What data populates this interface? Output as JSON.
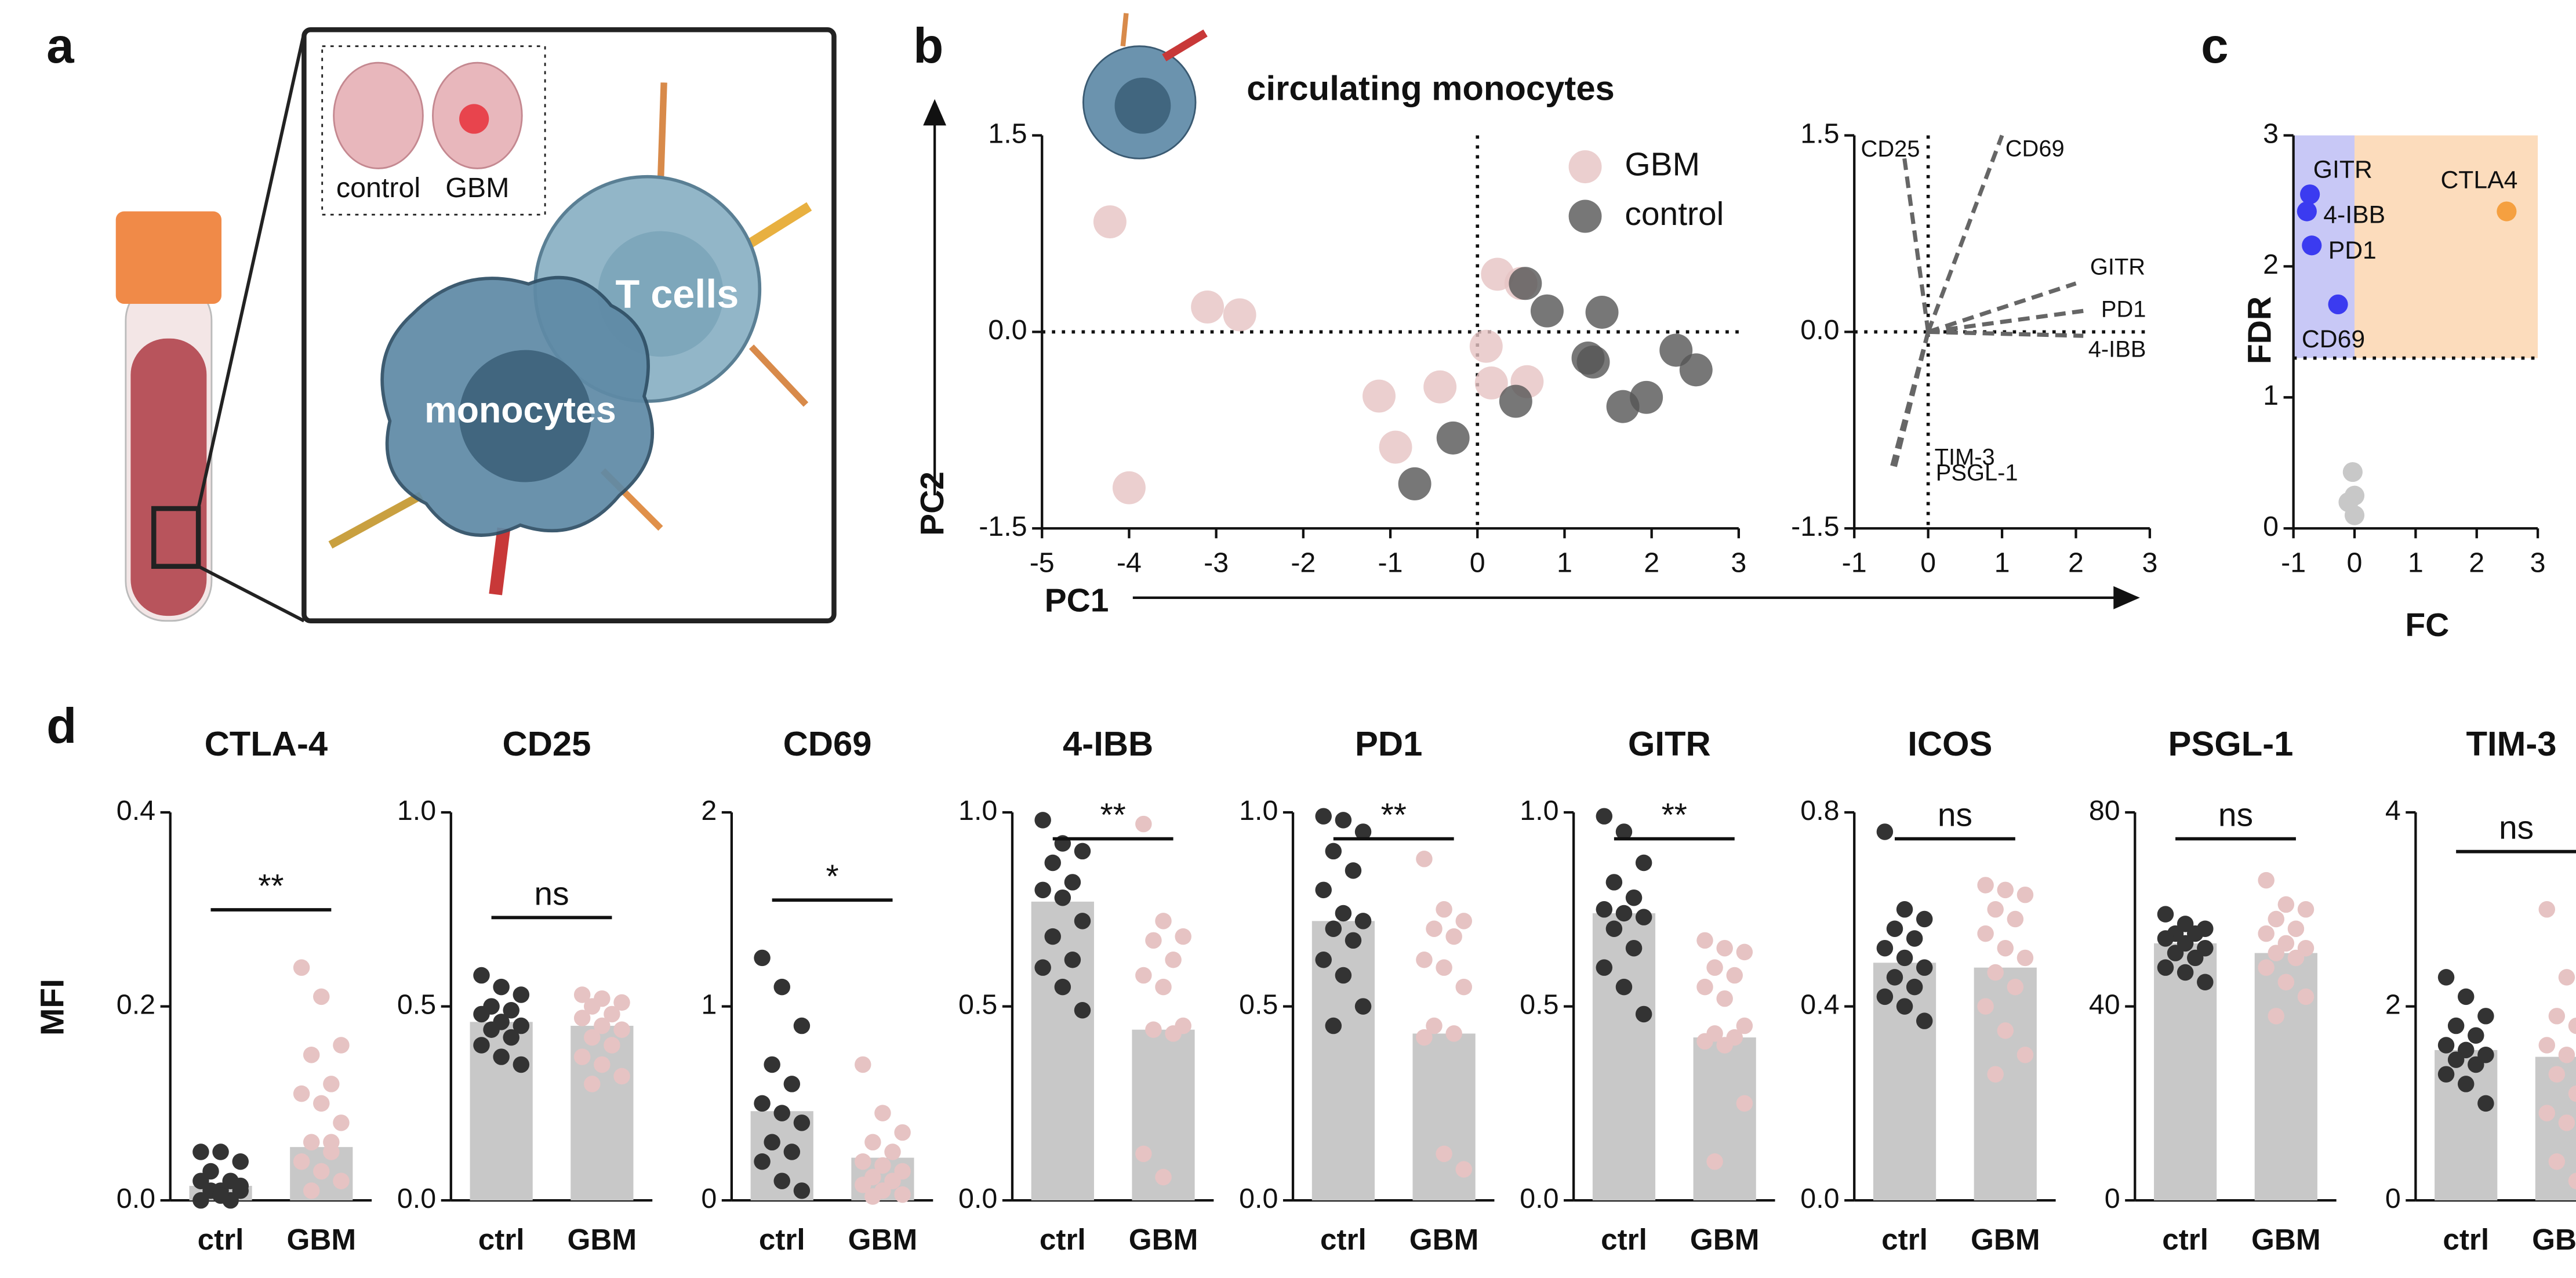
{
  "panels": [
    "a",
    "b",
    "c",
    "d"
  ],
  "illustration": {
    "brain_labels": [
      "control",
      "GBM"
    ],
    "cells": [
      "T cells",
      "monocytes"
    ]
  },
  "chart_data": [
    {
      "type": "scatter",
      "title": "circulating monocytes",
      "xlabel": "PC1",
      "ylabel": "PC2",
      "zero_lines": true,
      "xlim": [
        -5,
        3
      ],
      "xticks": [
        -5,
        -4,
        -3,
        -2,
        -1,
        0,
        1,
        2,
        3
      ],
      "ylim": [
        -1.5,
        1.5
      ],
      "yticks": [
        -1.5,
        {
          "value": 0,
          "label": "0.0"
        },
        1.5
      ],
      "series": [
        {
          "name": "GBM",
          "color": "#e6c3c3",
          "x": [
            -4.22,
            -3.1,
            -2.73,
            -1.13,
            -0.94,
            -0.43,
            0.23,
            0.5,
            0.1,
            0.16,
            0.57,
            -4.0
          ],
          "y": [
            0.84,
            0.19,
            0.13,
            -0.49,
            -0.88,
            -0.42,
            0.44,
            0.37,
            -0.11,
            -0.39,
            -0.38,
            -1.19
          ]
        },
        {
          "name": "control",
          "color": "#555555",
          "x": [
            0.55,
            0.8,
            1.43,
            0.44,
            -0.28,
            -0.72,
            1.27,
            1.33,
            1.67,
            1.94,
            2.28,
            2.51
          ],
          "y": [
            0.37,
            0.16,
            0.15,
            -0.53,
            -0.81,
            -1.16,
            -0.2,
            -0.23,
            -0.57,
            -0.5,
            -0.14,
            -0.29
          ]
        }
      ]
    },
    {
      "type": "biplot",
      "zero_lines": true,
      "xlim": [
        -1,
        3
      ],
      "xticks": [
        -1,
        0,
        1,
        2,
        3
      ],
      "ylim": [
        -1.5,
        1.5
      ],
      "yticks": [
        -1.5,
        {
          "value": 0,
          "label": "0.0"
        },
        1.5
      ],
      "color": "#666666",
      "loadings": [
        {
          "label": "CD25",
          "x": -0.33,
          "y": 1.36
        },
        {
          "label": "CD69",
          "x": 1.0,
          "y": 1.5
        },
        {
          "label": "GITR",
          "x": 2.0,
          "y": 0.37
        },
        {
          "label": "PD1",
          "x": 2.1,
          "y": 0.16
        },
        {
          "label": "4-IBB",
          "x": 2.1,
          "y": -0.03
        },
        {
          "label": "TIM-3",
          "x": -0.45,
          "y": -1.03
        },
        {
          "label": "PSGL-1",
          "x": -0.5,
          "y": -1.05
        }
      ]
    },
    {
      "type": "scatter",
      "xlabel": "FC",
      "ylabel": "FDR",
      "xlim": [
        -1,
        3
      ],
      "xticks": [
        -1,
        0,
        1,
        2,
        3
      ],
      "ylim": [
        0,
        3
      ],
      "yticks": [
        0,
        1,
        2,
        3
      ],
      "hline": 1.3,
      "region_colors": [
        "#c8c8f6",
        "#fcdcbc"
      ],
      "x": [
        -0.73,
        -0.78,
        -0.7,
        -0.27,
        2.49,
        -0.03,
        0,
        -0.1,
        0
      ],
      "y": [
        2.55,
        2.42,
        2.16,
        1.71,
        2.42,
        0.43,
        0.25,
        0.2,
        0.1
      ],
      "labels": [
        "GITR",
        "4-IBB",
        "PD1",
        "CD69",
        "CTLA4",
        null,
        null,
        null,
        null
      ],
      "colors": [
        "#3b3bf0",
        "#3b3bf0",
        "#3b3bf0",
        "#3b3bf0",
        "#f5a040",
        "#c8c8c8",
        "#c8c8c8",
        "#c8c8c8",
        "#c8c8c8"
      ]
    },
    {
      "type": "bar",
      "title": "CTLA-4",
      "ylabel": "MFI",
      "categories": [
        "ctrl",
        "GBM"
      ],
      "values": [
        0.015,
        0.055
      ],
      "ylim": [
        0,
        0.4
      ],
      "yticks": [
        {
          "value": 0,
          "label": "0.0"
        },
        0.2,
        0.4
      ],
      "significance": "**",
      "bar_color": "#c8c8c8",
      "colors": [
        "#333333",
        "#e6c3c3"
      ],
      "points": [
        [
          0.05,
          0.05,
          0.04,
          0.03,
          0.02,
          0.02,
          0.01,
          0.01,
          0.01,
          0.0,
          0.0,
          0.005,
          0.015
        ],
        [
          0.24,
          0.21,
          0.16,
          0.15,
          0.12,
          0.11,
          0.1,
          0.08,
          0.06,
          0.05,
          0.04,
          0.03,
          0.02,
          0.01,
          0.06
        ]
      ]
    },
    {
      "type": "bar",
      "title": "CD25",
      "categories": [
        "ctrl",
        "GBM"
      ],
      "values": [
        0.46,
        0.45
      ],
      "ylim": [
        0,
        1
      ],
      "yticks": [
        {
          "value": 0,
          "label": "0.0"
        },
        0.5,
        {
          "value": 1,
          "label": "1.0"
        }
      ],
      "significance": "ns",
      "bar_color": "#c8c8c8",
      "colors": [
        "#333333",
        "#e6c3c3"
      ],
      "points": [
        [
          0.58,
          0.55,
          0.53,
          0.5,
          0.49,
          0.48,
          0.46,
          0.45,
          0.44,
          0.42,
          0.4,
          0.37,
          0.35
        ],
        [
          0.53,
          0.52,
          0.51,
          0.5,
          0.48,
          0.47,
          0.45,
          0.44,
          0.42,
          0.4,
          0.37,
          0.35,
          0.32,
          0.3
        ]
      ]
    },
    {
      "type": "bar",
      "title": "CD69",
      "categories": [
        "ctrl",
        "GBM"
      ],
      "values": [
        0.46,
        0.22
      ],
      "ylim": [
        0,
        2
      ],
      "yticks": [
        0,
        1,
        2
      ],
      "significance": "*",
      "bar_color": "#c8c8c8",
      "colors": [
        "#333333",
        "#e6c3c3"
      ],
      "points": [
        [
          1.25,
          1.1,
          0.9,
          0.7,
          0.6,
          0.5,
          0.45,
          0.4,
          0.3,
          0.25,
          0.2,
          0.1,
          0.05
        ],
        [
          0.7,
          0.45,
          0.35,
          0.3,
          0.25,
          0.2,
          0.18,
          0.15,
          0.12,
          0.1,
          0.08,
          0.05,
          0.03,
          0.02
        ]
      ]
    },
    {
      "type": "bar",
      "title": "4-IBB",
      "categories": [
        "ctrl",
        "GBM"
      ],
      "values": [
        0.77,
        0.44
      ],
      "ylim": [
        0,
        1
      ],
      "yticks": [
        {
          "value": 0,
          "label": "0.0"
        },
        0.5,
        {
          "value": 1,
          "label": "1.0"
        }
      ],
      "significance": "**",
      "bar_color": "#c8c8c8",
      "colors": [
        "#333333",
        "#e6c3c3"
      ],
      "points": [
        [
          0.98,
          0.92,
          0.9,
          0.87,
          0.82,
          0.8,
          0.78,
          0.72,
          0.68,
          0.62,
          0.6,
          0.55,
          0.49
        ],
        [
          0.97,
          0.72,
          0.68,
          0.67,
          0.62,
          0.58,
          0.55,
          0.45,
          0.44,
          0.43,
          0.12,
          0.06
        ]
      ]
    },
    {
      "type": "bar",
      "title": "PD1",
      "categories": [
        "ctrl",
        "GBM"
      ],
      "values": [
        0.72,
        0.43
      ],
      "ylim": [
        0,
        1
      ],
      "yticks": [
        {
          "value": 0,
          "label": "0.0"
        },
        0.5,
        {
          "value": 1,
          "label": "1.0"
        }
      ],
      "significance": "**",
      "bar_color": "#c8c8c8",
      "colors": [
        "#333333",
        "#e6c3c3"
      ],
      "points": [
        [
          0.99,
          0.98,
          0.95,
          0.9,
          0.85,
          0.8,
          0.74,
          0.72,
          0.7,
          0.67,
          0.62,
          0.58,
          0.5,
          0.45
        ],
        [
          0.88,
          0.75,
          0.72,
          0.7,
          0.68,
          0.62,
          0.6,
          0.55,
          0.45,
          0.43,
          0.42,
          0.12,
          0.08
        ]
      ]
    },
    {
      "type": "bar",
      "title": "GITR",
      "categories": [
        "ctrl",
        "GBM"
      ],
      "values": [
        0.74,
        0.42
      ],
      "ylim": [
        0,
        1
      ],
      "yticks": [
        {
          "value": 0,
          "label": "0.0"
        },
        0.5,
        {
          "value": 1,
          "label": "1.0"
        }
      ],
      "significance": "**",
      "bar_color": "#c8c8c8",
      "colors": [
        "#333333",
        "#e6c3c3"
      ],
      "points": [
        [
          0.99,
          0.95,
          0.87,
          0.82,
          0.78,
          0.75,
          0.74,
          0.73,
          0.7,
          0.65,
          0.6,
          0.55,
          0.48
        ],
        [
          0.67,
          0.65,
          0.64,
          0.6,
          0.58,
          0.55,
          0.52,
          0.45,
          0.43,
          0.42,
          0.41,
          0.4,
          0.25,
          0.1
        ]
      ]
    },
    {
      "type": "bar",
      "title": "ICOS",
      "categories": [
        "ctrl",
        "GBM"
      ],
      "values": [
        0.49,
        0.48
      ],
      "ylim": [
        0,
        0.8
      ],
      "yticks": [
        {
          "value": 0,
          "label": "0.0"
        },
        0.4,
        0.8
      ],
      "significance": "ns",
      "bar_color": "#c8c8c8",
      "colors": [
        "#333333",
        "#e6c3c3"
      ],
      "points": [
        [
          0.76,
          0.6,
          0.58,
          0.56,
          0.54,
          0.52,
          0.5,
          0.48,
          0.46,
          0.44,
          0.42,
          0.4,
          0.37
        ],
        [
          0.65,
          0.64,
          0.63,
          0.6,
          0.58,
          0.55,
          0.52,
          0.5,
          0.47,
          0.44,
          0.4,
          0.35,
          0.3,
          0.26
        ]
      ]
    },
    {
      "type": "bar",
      "title": "PSGL-1",
      "categories": [
        "ctrl",
        "GBM"
      ],
      "values": [
        53,
        51
      ],
      "ylim": [
        0,
        80
      ],
      "yticks": [
        0,
        40,
        80
      ],
      "significance": "ns",
      "bar_color": "#c8c8c8",
      "colors": [
        "#333333",
        "#e6c3c3"
      ],
      "points": [
        [
          59,
          57,
          56,
          55,
          55,
          54,
          53,
          52,
          51,
          50,
          48,
          47,
          45
        ],
        [
          66,
          61,
          60,
          58,
          56,
          55,
          53,
          52,
          51,
          50,
          48,
          45,
          42,
          38
        ]
      ]
    },
    {
      "type": "bar",
      "title": "TIM-3",
      "categories": [
        "ctrl",
        "GBM"
      ],
      "values": [
        1.55,
        1.48
      ],
      "ylim": [
        0,
        4
      ],
      "yticks": [
        0,
        2,
        4
      ],
      "significance": "ns",
      "bar_color": "#c8c8c8",
      "colors": [
        "#333333",
        "#e6c3c3"
      ],
      "points": [
        [
          2.3,
          2.1,
          1.9,
          1.8,
          1.7,
          1.6,
          1.55,
          1.5,
          1.45,
          1.4,
          1.3,
          1.2,
          1.0
        ],
        [
          3.0,
          2.3,
          2.0,
          1.9,
          1.8,
          1.6,
          1.5,
          1.4,
          1.3,
          1.1,
          0.9,
          0.8,
          0.6,
          0.4,
          0.2
        ]
      ]
    }
  ]
}
